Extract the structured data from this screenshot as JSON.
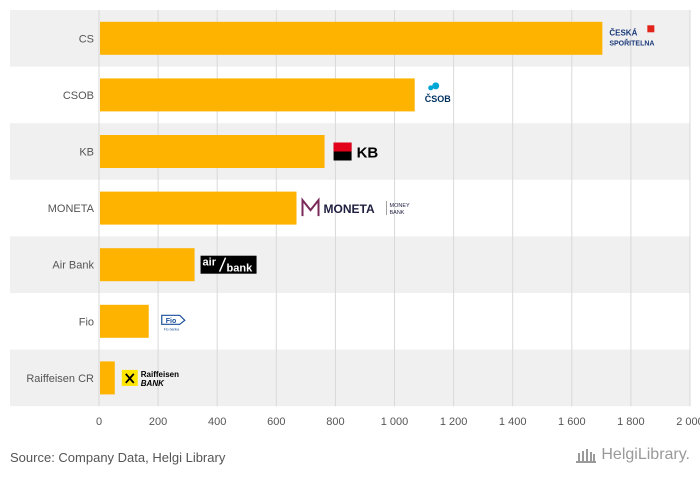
{
  "chart_data": {
    "type": "bar",
    "orientation": "horizontal",
    "categories": [
      "CS",
      "CSOB",
      "KB",
      "MONETA",
      "Air Bank",
      "Fio",
      "Raiffeisen CR"
    ],
    "values": [
      1700,
      1065,
      760,
      665,
      320,
      165,
      50
    ],
    "xlim": [
      0,
      2000
    ],
    "xticks": [
      0,
      200,
      400,
      600,
      800,
      1000,
      1200,
      1400,
      1600,
      1800,
      2000
    ],
    "xtick_labels": [
      "0",
      "200",
      "400",
      "600",
      "800",
      "1 000",
      "1 200",
      "1 400",
      "1 600",
      "1 800",
      "2 000"
    ],
    "grid": true,
    "bar_color": "#FDB300",
    "band_color": "#F0F0F0",
    "logos": [
      {
        "name": "ceska-sporitelna-logo",
        "lines": [
          "ČESKÁ",
          "SPOŘITELNA"
        ],
        "color": "#1b3a7a",
        "accent": "#e2231a"
      },
      {
        "name": "csob-logo",
        "lines": [
          "ČSOB"
        ],
        "color": "#00305e",
        "accent": "#00a6d6"
      },
      {
        "name": "kb-logo",
        "lines": [
          "KB"
        ],
        "color": "#000000",
        "accent": "#e2001a"
      },
      {
        "name": "moneta-logo",
        "lines": [
          "MONETA",
          "MONEY",
          "BANK"
        ],
        "color": "#1f1f40",
        "accent": "#7a2a5a"
      },
      {
        "name": "air-bank-logo",
        "lines": [
          "air",
          "bank"
        ],
        "color": "#ffffff",
        "accent": "#000000"
      },
      {
        "name": "fio-logo",
        "lines": [
          "Fio",
          "Fio banka"
        ],
        "color": "#1b4f9c",
        "accent": "#1b4f9c"
      },
      {
        "name": "raiffeisen-logo",
        "lines": [
          "Raiffeisen",
          "BANK"
        ],
        "color": "#000000",
        "accent": "#ffe600"
      }
    ]
  },
  "footer": {
    "source": "Source: Company Data, Helgi Library",
    "brand": "HelgiLibrary."
  }
}
